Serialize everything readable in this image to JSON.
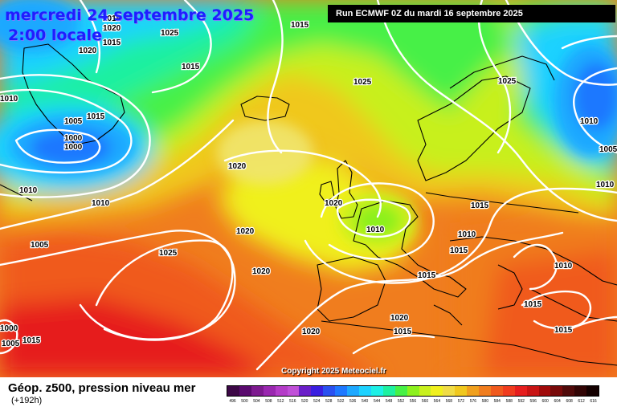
{
  "header": {
    "date": "mercredi 24 septembre 2025",
    "local_time": "2:00 locale",
    "run_info": "Run ECMWF 0Z du mardi 16 septembre 2025"
  },
  "map": {
    "copyright": "Copyright 2025 Meteociel.fr",
    "isobar_labels": [
      {
        "text": "1015"
      },
      {
        "text": "1020"
      },
      {
        "text": "1025"
      },
      {
        "text": "1020"
      },
      {
        "text": "1015"
      },
      {
        "text": "1015"
      },
      {
        "text": "1015"
      },
      {
        "text": "1010"
      },
      {
        "text": "1005"
      },
      {
        "text": "1015"
      },
      {
        "text": "1000"
      },
      {
        "text": "1000"
      },
      {
        "text": "1010"
      },
      {
        "text": "1010"
      },
      {
        "text": "1005"
      },
      {
        "text": "1025"
      },
      {
        "text": "1020"
      },
      {
        "text": "1020"
      },
      {
        "text": "1020"
      },
      {
        "text": "1020"
      },
      {
        "text": "1010"
      },
      {
        "text": "1015"
      },
      {
        "text": "1010"
      },
      {
        "text": "1015"
      },
      {
        "text": "1015"
      },
      {
        "text": "1020"
      },
      {
        "text": "1020"
      },
      {
        "text": "1015"
      },
      {
        "text": "1015"
      },
      {
        "text": "1015"
      },
      {
        "text": "1015"
      },
      {
        "text": "1000"
      },
      {
        "text": "1005"
      },
      {
        "text": "1025"
      },
      {
        "text": "1025"
      },
      {
        "text": "1010"
      },
      {
        "text": "1005"
      },
      {
        "text": "1010"
      },
      {
        "text": "1010"
      }
    ]
  },
  "legend": {
    "title": "Géop. z500, pression niveau mer",
    "subtitle": "(+192h)",
    "scale_values": [
      "496",
      "500",
      "504",
      "508",
      "512",
      "516",
      "520",
      "524",
      "528",
      "532",
      "536",
      "540",
      "544",
      "548",
      "552",
      "556",
      "560",
      "564",
      "568",
      "572",
      "576",
      "580",
      "584",
      "588",
      "592",
      "596",
      "600",
      "604",
      "608",
      "612",
      "616"
    ],
    "scale_colors": [
      "#3c0846",
      "#5a0a6e",
      "#7d1a8f",
      "#9a28b0",
      "#b43cc8",
      "#c050d8",
      "#6a1ec8",
      "#3a1ee0",
      "#2a50f0",
      "#1e78ff",
      "#1ea8ff",
      "#1ed2ff",
      "#1ef0e6",
      "#1ef0a0",
      "#46f046",
      "#8cf01e",
      "#c8f01e",
      "#f0f01e",
      "#f0dc46",
      "#f0c81e",
      "#f0a01e",
      "#f07d1e",
      "#f05a1e",
      "#f03c1e",
      "#e61e1e",
      "#c81414",
      "#a00a0a",
      "#780a0a",
      "#500a0a",
      "#320505",
      "#140000"
    ],
    "colors": {
      "title_blue": "#1e1eff",
      "isobar": "#ffffff",
      "coastline": "#000000"
    }
  }
}
